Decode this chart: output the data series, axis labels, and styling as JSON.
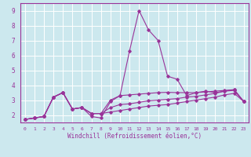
{
  "xlabel": "Windchill (Refroidissement éolien,°C)",
  "xlim": [
    -0.5,
    23.5
  ],
  "ylim": [
    1.5,
    9.5
  ],
  "yticks": [
    2,
    3,
    4,
    5,
    6,
    7,
    8,
    9
  ],
  "xticks": [
    0,
    1,
    2,
    3,
    4,
    5,
    6,
    7,
    8,
    9,
    10,
    11,
    12,
    13,
    14,
    15,
    16,
    17,
    18,
    19,
    20,
    21,
    22,
    23
  ],
  "bg_color": "#cce8ee",
  "grid_color": "#ffffff",
  "line_color": "#993399",
  "line1": [
    1.7,
    1.8,
    1.9,
    3.2,
    3.5,
    2.4,
    2.5,
    1.9,
    1.8,
    2.9,
    3.3,
    6.3,
    9.0,
    7.7,
    7.0,
    4.6,
    4.4,
    3.3,
    3.5,
    3.6,
    3.5,
    3.6,
    3.7,
    2.9
  ],
  "line2": [
    1.7,
    1.8,
    1.9,
    3.2,
    3.5,
    2.4,
    2.5,
    2.1,
    2.1,
    3.0,
    3.3,
    3.35,
    3.4,
    3.45,
    3.5,
    3.52,
    3.5,
    3.5,
    3.5,
    3.55,
    3.6,
    3.65,
    3.7,
    2.9
  ],
  "line3": [
    1.7,
    1.8,
    1.9,
    3.2,
    3.5,
    2.4,
    2.5,
    2.1,
    2.1,
    2.5,
    2.7,
    2.75,
    2.85,
    2.95,
    3.0,
    3.05,
    3.1,
    3.2,
    3.25,
    3.35,
    3.45,
    3.6,
    3.65,
    2.9
  ],
  "line4": [
    1.7,
    1.8,
    1.9,
    3.2,
    3.5,
    2.4,
    2.5,
    2.1,
    2.1,
    2.2,
    2.3,
    2.4,
    2.5,
    2.6,
    2.65,
    2.7,
    2.8,
    2.9,
    3.0,
    3.1,
    3.2,
    3.35,
    3.45,
    2.9
  ]
}
